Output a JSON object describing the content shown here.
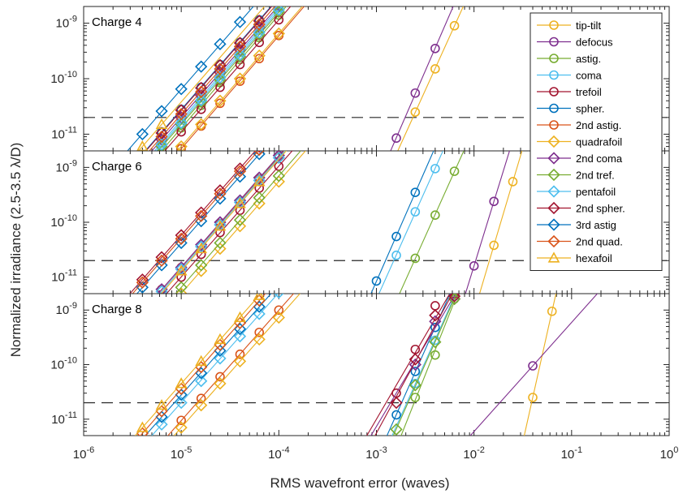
{
  "chart_data": {
    "type": "line",
    "xlabel": "RMS wavefront error (waves)",
    "ylabel": "Normalized irradiance (2.5-3.5  λ/D)",
    "xscale": "log",
    "yscale": "log",
    "xlim": [
      1e-06,
      1
    ],
    "ylim": [
      5e-12,
      2e-09
    ],
    "x_ticks": [
      1e-06,
      1e-05,
      0.0001,
      0.001,
      0.01,
      0.1,
      1
    ],
    "x_tick_labels": [
      {
        "base": "10",
        "exp": "-6"
      },
      {
        "base": "10",
        "exp": "-5"
      },
      {
        "base": "10",
        "exp": "-4"
      },
      {
        "base": "10",
        "exp": "-3"
      },
      {
        "base": "10",
        "exp": "-2"
      },
      {
        "base": "10",
        "exp": "-1"
      },
      {
        "base": "10",
        "exp": "0"
      }
    ],
    "y_ticks": [
      1e-11,
      1e-10,
      1e-09
    ],
    "y_tick_labels": [
      {
        "base": "10",
        "exp": "-11"
      },
      {
        "base": "10",
        "exp": "-10"
      },
      {
        "base": "10",
        "exp": "-9"
      }
    ],
    "reference_line": {
      "y": 2e-11,
      "style": "dashed"
    },
    "legend_position": "top-right",
    "series_styles": [
      {
        "name": "tip-tilt",
        "color": "#EDB120",
        "marker": "circle"
      },
      {
        "name": "defocus",
        "color": "#7E2F8E",
        "marker": "circle"
      },
      {
        "name": "astig.",
        "color": "#77AC30",
        "marker": "circle"
      },
      {
        "name": "coma",
        "color": "#4DBEEE",
        "marker": "circle"
      },
      {
        "name": "trefoil",
        "color": "#A2142F",
        "marker": "circle"
      },
      {
        "name": "spher.",
        "color": "#0072BD",
        "marker": "circle"
      },
      {
        "name": "2nd astig.",
        "color": "#D95319",
        "marker": "circle"
      },
      {
        "name": "quadrafoil",
        "color": "#EDB120",
        "marker": "diamond"
      },
      {
        "name": "2nd coma",
        "color": "#7E2F8E",
        "marker": "diamond"
      },
      {
        "name": "2nd tref.",
        "color": "#77AC30",
        "marker": "diamond"
      },
      {
        "name": "pentafoil",
        "color": "#4DBEEE",
        "marker": "diamond"
      },
      {
        "name": "2nd spher.",
        "color": "#A2142F",
        "marker": "diamond"
      },
      {
        "name": "3rd astig",
        "color": "#0072BD",
        "marker": "diamond"
      },
      {
        "name": "2nd quad.",
        "color": "#D95319",
        "marker": "diamond"
      },
      {
        "name": "hexafoil",
        "color": "#EDB120",
        "marker": "triangle"
      }
    ],
    "panels": [
      {
        "title": "Charge 4",
        "show_legend": true,
        "series": [
          {
            "name": "tip-tilt",
            "x": [
              0.0025,
              0.004,
              0.0063
            ],
            "y": [
              2.5e-11,
              1.5e-10,
              9e-10
            ]
          },
          {
            "name": "defocus",
            "x": [
              0.0016,
              0.0025,
              0.004
            ],
            "y": [
              8.5e-12,
              5.5e-11,
              3.5e-10
            ]
          },
          {
            "name": "astig.",
            "x": [
              6.3e-06,
              1e-05,
              1.6e-05,
              2.5e-05,
              4e-05,
              6.3e-05,
              0.0001
            ],
            "y": [
              5e-12,
              1.3e-11,
              3.3e-11,
              8.5e-11,
              2.2e-10,
              5.5e-10,
              1.4e-09
            ]
          },
          {
            "name": "coma",
            "x": [
              6.3e-06,
              1e-05,
              1.6e-05,
              2.5e-05,
              4e-05,
              6.3e-05,
              0.0001
            ],
            "y": [
              7e-12,
              1.8e-11,
              4.5e-11,
              1.15e-10,
              3e-10,
              7.5e-10,
              1.9e-09
            ]
          },
          {
            "name": "trefoil",
            "x": [
              1e-05,
              1.6e-05,
              2.5e-05,
              4e-05,
              6.3e-05,
              0.0001
            ],
            "y": [
              1.1e-11,
              2.8e-11,
              7e-11,
              1.8e-10,
              4.5e-10,
              1.15e-09
            ]
          },
          {
            "name": "spher.",
            "x": [
              6.3e-06,
              1e-05,
              1.6e-05,
              2.5e-05,
              4e-05,
              6.3e-05
            ],
            "y": [
              1.1e-11,
              2.8e-11,
              7e-11,
              1.8e-10,
              4.5e-10,
              1.15e-09
            ]
          },
          {
            "name": "2nd astig.",
            "x": [
              1e-05,
              1.6e-05,
              2.5e-05,
              4e-05,
              6.3e-05,
              0.0001
            ],
            "y": [
              5.5e-12,
              1.4e-11,
              3.6e-11,
              9e-11,
              2.3e-10,
              6e-10
            ]
          },
          {
            "name": "quadrafoil",
            "x": [
              1e-05,
              1.6e-05,
              2.5e-05,
              4e-05,
              6.3e-05,
              0.0001
            ],
            "y": [
              6e-12,
              1.5e-11,
              4e-11,
              1e-10,
              2.6e-10,
              6.5e-10
            ]
          },
          {
            "name": "2nd coma",
            "x": [
              6.3e-06,
              1e-05,
              1.6e-05,
              2.5e-05,
              4e-05,
              6.3e-05,
              0.0001
            ],
            "y": [
              8e-12,
              2e-11,
              5e-11,
              1.3e-10,
              3.3e-10,
              8.5e-10,
              2.1e-09
            ]
          },
          {
            "name": "2nd tref.",
            "x": [
              6.3e-06,
              1e-05,
              1.6e-05,
              2.5e-05,
              4e-05,
              6.3e-05,
              0.0001
            ],
            "y": [
              6e-12,
              1.5e-11,
              3.8e-11,
              9.5e-11,
              2.5e-10,
              6.2e-10,
              1.6e-09
            ]
          },
          {
            "name": "pentafoil",
            "x": [
              6.3e-06,
              1e-05,
              1.6e-05,
              2.5e-05,
              4e-05,
              6.3e-05,
              0.0001
            ],
            "y": [
              6.5e-12,
              1.6e-11,
              4.1e-11,
              1.05e-10,
              2.7e-10,
              6.8e-10,
              1.75e-09
            ]
          },
          {
            "name": "2nd spher.",
            "x": [
              6.3e-06,
              1e-05,
              1.6e-05,
              2.5e-05,
              4e-05,
              6.3e-05
            ],
            "y": [
              1.05e-11,
              2.7e-11,
              6.8e-11,
              1.75e-10,
              4.4e-10,
              1.1e-09
            ]
          },
          {
            "name": "3rd astig",
            "x": [
              4e-06,
              6.3e-06,
              1e-05,
              1.6e-05,
              2.5e-05,
              4e-05,
              6.3e-05
            ],
            "y": [
              1e-11,
              2.6e-11,
              6.5e-11,
              1.65e-10,
              4.2e-10,
              1.05e-09,
              2.6e-09
            ]
          },
          {
            "name": "2nd quad.",
            "x": [
              6.3e-06,
              1e-05,
              1.6e-05,
              2.5e-05,
              4e-05,
              6.3e-05
            ],
            "y": [
              9e-12,
              2.3e-11,
              5.8e-11,
              1.5e-10,
              3.8e-10,
              9.5e-10
            ]
          },
          {
            "name": "hexafoil",
            "x": [
              4e-06,
              6.3e-06
            ],
            "y": [
              6e-12,
              1.5e-11
            ]
          }
        ]
      },
      {
        "title": "Charge 6",
        "show_legend": false,
        "series": [
          {
            "name": "tip-tilt",
            "x": [
              0.016,
              0.025
            ],
            "y": [
              3.8e-11,
              5.5e-10
            ]
          },
          {
            "name": "defocus",
            "x": [
              0.01,
              0.016
            ],
            "y": [
              1.6e-11,
              2.4e-10
            ]
          },
          {
            "name": "astig.",
            "x": [
              0.0025,
              0.004,
              0.0063
            ],
            "y": [
              2.2e-11,
              1.35e-10,
              8.5e-10
            ]
          },
          {
            "name": "coma",
            "x": [
              0.0016,
              0.0025,
              0.004
            ],
            "y": [
              2.5e-11,
              1.55e-10,
              9.5e-10
            ]
          },
          {
            "name": "trefoil",
            "x": [
              1e-05,
              1.6e-05,
              2.5e-05,
              4e-05,
              6.3e-05,
              0.0001
            ],
            "y": [
              1e-11,
              2.6e-11,
              6.5e-11,
              1.65e-10,
              4.2e-10,
              1.05e-09
            ]
          },
          {
            "name": "spher.",
            "x": [
              0.001,
              0.0016,
              0.0025
            ],
            "y": [
              8.5e-12,
              5.5e-11,
              3.5e-10
            ]
          },
          {
            "name": "2nd astig.",
            "x": [
              6.3e-06,
              1e-05,
              1.6e-05,
              2.5e-05,
              4e-05,
              6.3e-05,
              0.0001
            ],
            "y": [
              6e-12,
              1.5e-11,
              3.8e-11,
              9.5e-11,
              2.4e-10,
              6.2e-10,
              1.6e-09
            ]
          },
          {
            "name": "quadrafoil",
            "x": [
              1e-05,
              1.6e-05,
              2.5e-05,
              4e-05,
              6.3e-05,
              0.0001
            ],
            "y": [
              5e-12,
              1.3e-11,
              3.3e-11,
              8.5e-11,
              2.2e-10,
              5.5e-10
            ]
          },
          {
            "name": "2nd coma",
            "x": [
              6.3e-06,
              1e-05,
              1.6e-05,
              2.5e-05,
              4e-05,
              6.3e-05,
              0.0001
            ],
            "y": [
              6e-12,
              1.5e-11,
              3.9e-11,
              1e-10,
              2.5e-10,
              6.5e-10,
              1.65e-09
            ]
          },
          {
            "name": "2nd tref.",
            "x": [
              1e-05,
              1.6e-05,
              2.5e-05,
              4e-05,
              6.3e-05,
              0.0001
            ],
            "y": [
              6.5e-12,
              1.65e-11,
              4.2e-11,
              1.1e-10,
              2.8e-10,
              7e-10
            ]
          },
          {
            "name": "pentafoil",
            "x": [
              6.3e-06,
              1e-05,
              1.6e-05,
              2.5e-05,
              4e-05,
              6.3e-05,
              0.0001
            ],
            "y": [
              5.5e-12,
              1.4e-11,
              3.6e-11,
              9e-11,
              2.3e-10,
              5.8e-10,
              1.5e-09
            ]
          },
          {
            "name": "2nd spher.",
            "x": [
              4e-06,
              6.3e-06,
              1e-05,
              1.6e-05,
              2.5e-05,
              4e-05,
              6.3e-05
            ],
            "y": [
              9e-12,
              2.3e-11,
              5.8e-11,
              1.5e-10,
              3.8e-10,
              9.5e-10,
              2.4e-09
            ]
          },
          {
            "name": "3rd astig",
            "x": [
              4e-06,
              6.3e-06,
              1e-05,
              1.6e-05,
              2.5e-05,
              4e-05,
              6.3e-05
            ],
            "y": [
              6.5e-12,
              1.65e-11,
              4.2e-11,
              1.05e-10,
              2.7e-10,
              6.8e-10,
              1.75e-09
            ]
          },
          {
            "name": "2nd quad.",
            "x": [
              4e-06,
              6.3e-06,
              1e-05,
              1.6e-05,
              2.5e-05,
              4e-05,
              6.3e-05
            ],
            "y": [
              8e-12,
              2e-11,
              5e-11,
              1.3e-10,
              3.3e-10,
              8.5e-10,
              2.1e-09
            ]
          },
          {
            "name": "hexafoil",
            "x": [
              1e-05,
              1.6e-05,
              2.5e-05,
              4e-05,
              6.3e-05
            ],
            "y": [
              1.3e-11,
              3.3e-11,
              8.5e-11,
              2.2e-10,
              5.5e-10
            ]
          }
        ]
      },
      {
        "title": "Charge 8",
        "show_legend": false,
        "series": [
          {
            "name": "tip-tilt",
            "x": [
              0.04,
              0.063
            ],
            "y": [
              2.5e-11,
              9.5e-10
            ]
          },
          {
            "name": "defocus",
            "x": [
              0.04
            ],
            "y": [
              9.5e-11
            ]
          },
          {
            "name": "astig.",
            "x": [
              0.0025,
              0.004,
              0.0063
            ],
            "y": [
              2.5e-11,
              1.5e-10,
              1.6e-09
            ]
          },
          {
            "name": "coma",
            "x": [
              0.0025,
              0.004,
              0.0063
            ],
            "y": [
              4.5e-11,
              2.8e-10,
              1.8e-09
            ]
          },
          {
            "name": "trefoil",
            "x": [
              0.0016,
              0.0025,
              0.004,
              0.0063
            ],
            "y": [
              3e-11,
              1.9e-10,
              1.2e-09,
              2e-09
            ]
          },
          {
            "name": "spher.",
            "x": [
              0.0016,
              0.0025,
              0.004
            ],
            "y": [
              1.2e-11,
              7.5e-11,
              4.8e-10
            ]
          },
          {
            "name": "2nd astig.",
            "x": [
              1e-05,
              1.6e-05,
              2.5e-05,
              4e-05,
              6.3e-05,
              0.0001
            ],
            "y": [
              9.5e-12,
              2.4e-11,
              6e-11,
              1.55e-10,
              3.9e-10,
              1e-09
            ]
          },
          {
            "name": "quadrafoil",
            "x": [
              1e-05,
              1.6e-05,
              2.5e-05,
              4e-05,
              6.3e-05,
              0.0001
            ],
            "y": [
              7e-12,
              1.8e-11,
              4.5e-11,
              1.15e-10,
              2.9e-10,
              7.3e-10
            ]
          },
          {
            "name": "2nd coma",
            "x": [
              0.0025,
              0.004,
              0.0063
            ],
            "y": [
              1e-10,
              6.2e-10,
              1.6e-09
            ]
          },
          {
            "name": "2nd tref.",
            "x": [
              0.0016,
              0.0025,
              0.004,
              0.0063
            ],
            "y": [
              6.5e-12,
              4.2e-11,
              2.6e-10,
              1.6e-09
            ]
          },
          {
            "name": "pentafoil",
            "x": [
              6.3e-06,
              1e-05,
              1.6e-05,
              2.5e-05,
              4e-05,
              6.3e-05,
              0.0001
            ],
            "y": [
              8e-12,
              2e-11,
              5e-11,
              1.3e-10,
              3.3e-10,
              8.5e-10,
              2.1e-09
            ]
          },
          {
            "name": "2nd spher.",
            "x": [
              0.0016,
              0.0025,
              0.004,
              0.0063
            ],
            "y": [
              2e-11,
              1.25e-10,
              8e-10,
              1.8e-09
            ]
          },
          {
            "name": "3rd astig",
            "x": [
              6.3e-06,
              1e-05,
              1.6e-05,
              2.5e-05,
              4e-05,
              6.3e-05
            ],
            "y": [
              1.1e-11,
              2.8e-11,
              7e-11,
              1.8e-10,
              4.5e-10,
              1.15e-09
            ]
          },
          {
            "name": "2nd quad.",
            "x": [
              4e-06,
              6.3e-06,
              1e-05,
              1.6e-05,
              2.5e-05,
              4e-05,
              6.3e-05
            ],
            "y": [
              5.5e-12,
              1.4e-11,
              3.6e-11,
              9e-11,
              2.3e-10,
              5.8e-10,
              1.5e-09
            ]
          },
          {
            "name": "hexafoil",
            "x": [
              4e-06,
              6.3e-06,
              1e-05,
              1.6e-05,
              2.5e-05,
              4e-05,
              6.3e-05
            ],
            "y": [
              7e-12,
              1.8e-11,
              4.5e-11,
              1.15e-10,
              2.9e-10,
              7.3e-10,
              1.85e-09
            ]
          }
        ]
      }
    ]
  }
}
